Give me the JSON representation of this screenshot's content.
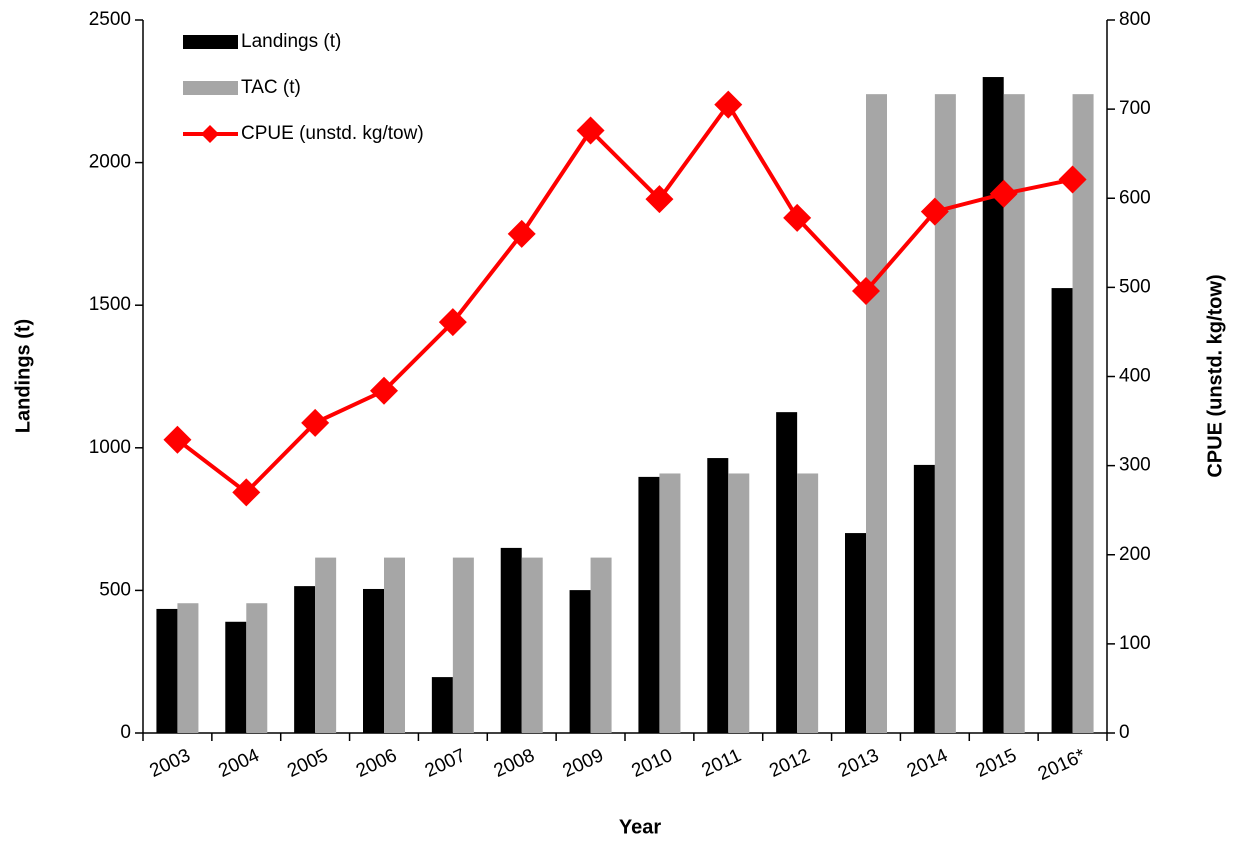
{
  "chart_data": {
    "type": "bar-line",
    "categories": [
      "2003",
      "2004",
      "2005",
      "2006",
      "2007",
      "2008",
      "2009",
      "2010",
      "2011",
      "2012",
      "2013",
      "2014",
      "2015",
      "2016*"
    ],
    "x_label": "Year",
    "y_label": "Landings (t)",
    "y2_label": "CPUE (unstd. kg/tow)",
    "series": [
      {
        "name": "Landings (t)",
        "type": "bar",
        "color": "#000000",
        "values": [
          435,
          390,
          515,
          505,
          196,
          649,
          501,
          898,
          964,
          1125,
          701,
          940,
          2300,
          1560
        ]
      },
      {
        "name": "TAC (t)",
        "type": "bar",
        "color": "#a6a6a6",
        "values": [
          455,
          455,
          615,
          615,
          615,
          615,
          615,
          910,
          910,
          910,
          2240,
          2240,
          2240,
          2240
        ]
      },
      {
        "name": "CPUE (unstd. kg/tow)",
        "type": "line",
        "axis": "y2",
        "color": "#ff0000",
        "values": [
          329,
          270,
          348,
          384,
          461,
          560,
          676,
          599,
          705,
          578,
          496,
          585,
          605,
          621
        ]
      }
    ],
    "ylim": [
      0,
      2500
    ],
    "yticks": [
      0,
      500,
      1000,
      1500,
      2000,
      2500
    ],
    "y2lim": [
      0,
      800
    ],
    "y2ticks": [
      0,
      100,
      200,
      300,
      400,
      500,
      600,
      700,
      800
    ],
    "legend": "top-left"
  }
}
